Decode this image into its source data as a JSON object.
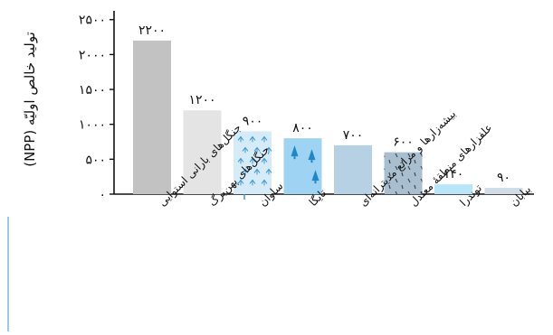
{
  "chart_data": {
    "type": "bar",
    "ylabel": "تولید خالص اولیّه (NPP)",
    "ylim": [
      0,
      2600
    ],
    "yticks": [
      0,
      500,
      1000,
      1500,
      2000,
      2500
    ],
    "ytick_labels": [
      "۰",
      "۵۰۰",
      "۱۰۰۰",
      "۱۵۰۰",
      "۲۰۰۰",
      "۲۵۰۰"
    ],
    "categories": [
      "جنگل‌های بارانی استوایی",
      "جنگل‌های پهن‌برگ",
      "ساوان",
      "تایگا",
      "بیشه‌زارها و مراتع مدیترانه‌ای",
      "علفزارهای منطقهٔ معتدل",
      "توندرا",
      "بیابان"
    ],
    "values": [
      2200,
      1200,
      900,
      800,
      700,
      600,
      140,
      90
    ],
    "value_labels": [
      "۲۲۰۰",
      "۱۲۰۰",
      "۹۰۰",
      "۸۰۰",
      "۷۰۰",
      "۶۰۰",
      "۱۴۰",
      "۹۰"
    ],
    "bar_colors": [
      "#c2c2c2",
      "#e4e4e4",
      "#d5ecf8",
      "#9fd3f3",
      "#b6d1e3",
      "#a9bfcf",
      "#b9e5f8",
      "#d0dde6"
    ],
    "bar_patterns": [
      "none",
      "none",
      "grass",
      "pine-tree",
      "none",
      "dashes",
      "none",
      "none"
    ],
    "grid": false
  }
}
